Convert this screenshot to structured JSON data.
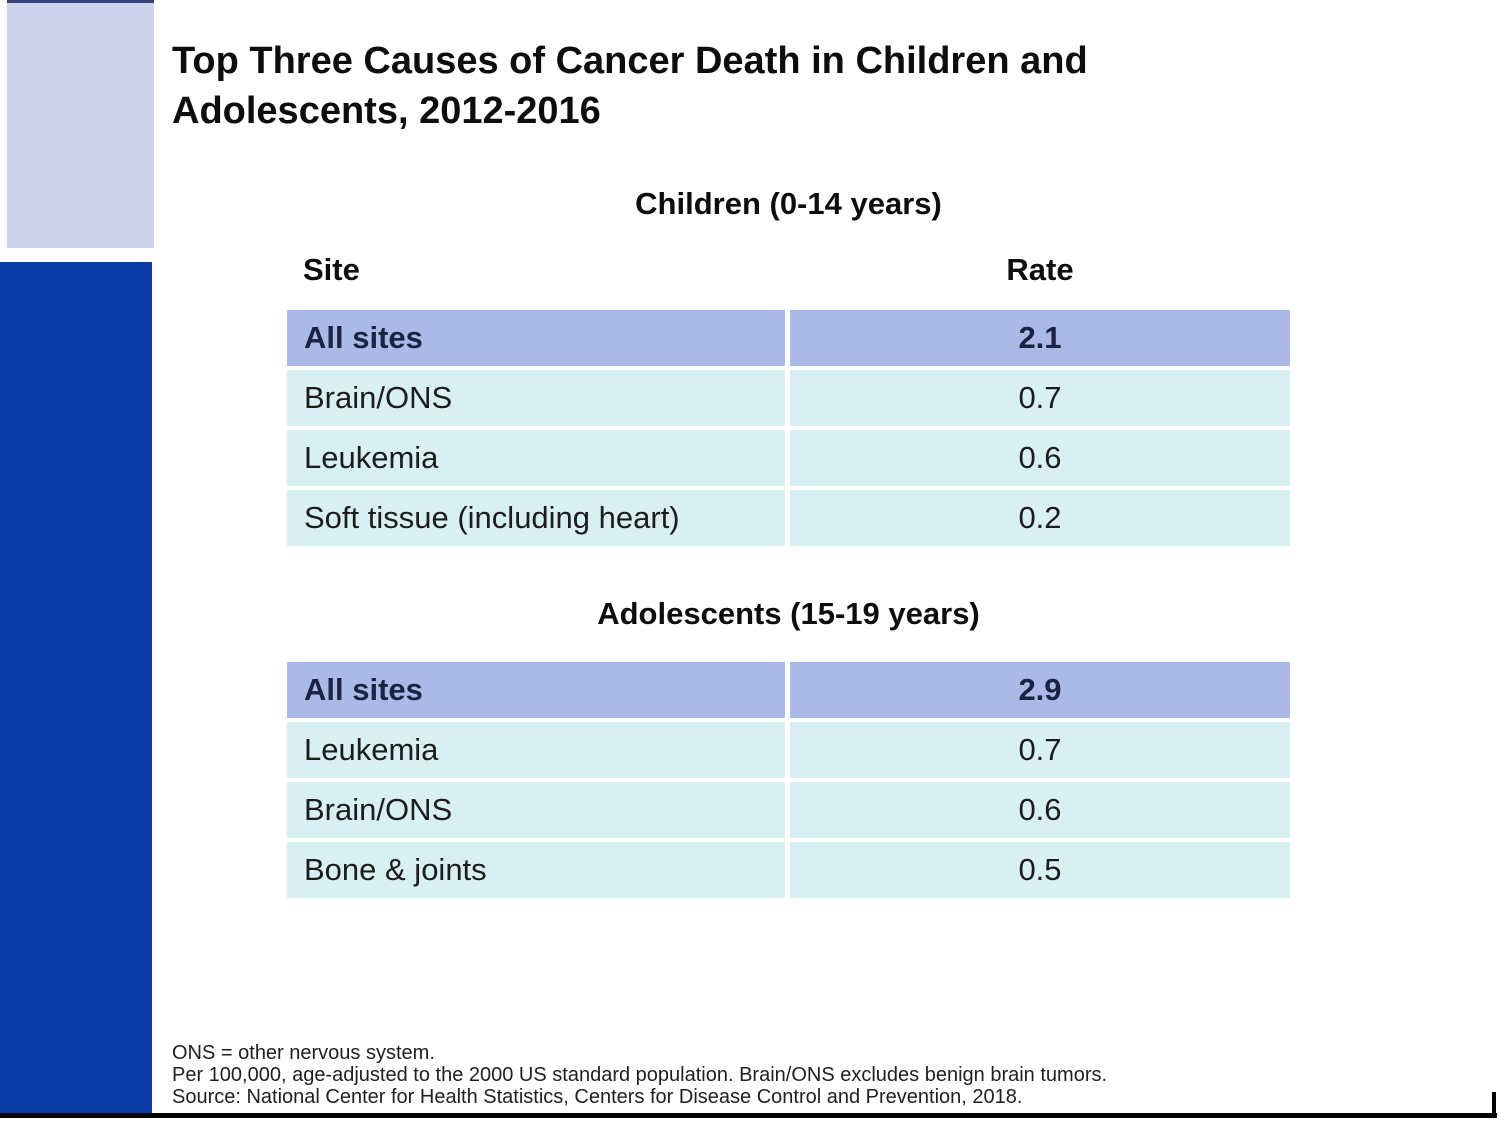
{
  "slide": {
    "title": "Top Three Causes of Cancer Death in Children and Adolescents, 2012-2016"
  },
  "colors": {
    "accent_bar_blue": "#0a3aa6",
    "corner_block_lavender": "#ccd3ed",
    "highlight_row_blue": "#aab9e8",
    "data_row_cyan": "#d8f0f2",
    "bottom_rule_black": "#000000"
  },
  "tables": [
    {
      "heading": "Children (0-14 years)",
      "columns": {
        "site": "Site",
        "rate": "Rate"
      },
      "rows": [
        {
          "site": "All sites",
          "rate": "2.1"
        },
        {
          "site": "Brain/ONS",
          "rate": "0.7"
        },
        {
          "site": "Leukemia",
          "rate": "0.6"
        },
        {
          "site": "Soft tissue (including heart)",
          "rate": "0.2"
        }
      ]
    },
    {
      "heading": "Adolescents (15-19 years)",
      "rows": [
        {
          "site": "All sites",
          "rate": "2.9"
        },
        {
          "site": "Leukemia",
          "rate": "0.7"
        },
        {
          "site": "Brain/ONS",
          "rate": "0.6"
        },
        {
          "site": "Bone & joints",
          "rate": "0.5"
        }
      ]
    }
  ],
  "footnotes": [
    "ONS = other nervous system.",
    "Per 100,000, age-adjusted to the 2000 US standard population. Brain/ONS excludes benign brain tumors.",
    "Source: National Center for Health Statistics, Centers for Disease Control and Prevention, 2018."
  ]
}
